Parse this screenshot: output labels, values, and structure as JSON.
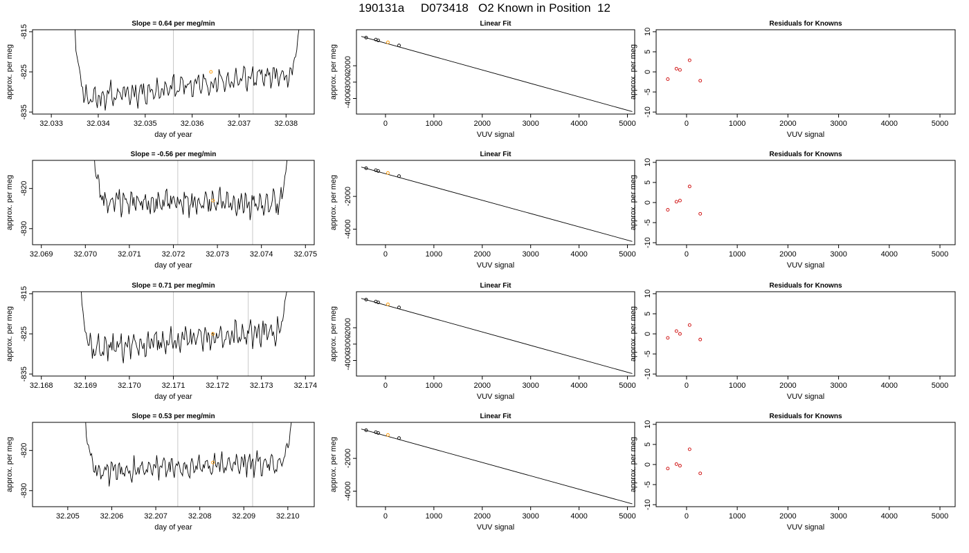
{
  "page": {
    "title": "190131a     D073418   O2 Known in Position  12"
  },
  "colors": {
    "trace": "#000000",
    "marker_orange": "#ff9900",
    "marker_red": "#cc0000",
    "vline": "#c8c8c8"
  },
  "chart_data": [
    {
      "type": "line",
      "row": 1,
      "panel": "trace",
      "title": "Slope =  0.64  per meg/min",
      "xlabel": "day of year",
      "ylabel": "approx. per meg",
      "xlim": [
        32.0326,
        32.0386
      ],
      "ylim": [
        -835.5,
        -814.5
      ],
      "xticks": [
        "32.033",
        "32.034",
        "32.035",
        "32.036",
        "32.037",
        "32.038"
      ],
      "xtick_values": [
        32.033,
        32.034,
        32.035,
        32.036,
        32.037,
        32.038
      ],
      "yticks": [
        "-815",
        "-825",
        "-835"
      ],
      "ytick_values": [
        -815,
        -825,
        -835
      ],
      "trace_start": 32.0335,
      "trace_end": 32.0383,
      "baseline_start": -832,
      "baseline_end": -825,
      "amplitude": 1.5,
      "seed": 11,
      "vlines": [
        32.0356,
        32.0373
      ],
      "marker": {
        "x": 32.0364,
        "y": -825
      }
    },
    {
      "type": "scatter",
      "row": 1,
      "panel": "fit",
      "title": "Linear Fit",
      "xlabel": "VUV signal",
      "ylabel": "approx. per meg",
      "xlim": [
        -600,
        5150
      ],
      "ylim": [
        -4950,
        200
      ],
      "xticks": [
        "0",
        "1000",
        "2000",
        "3000",
        "4000",
        "5000"
      ],
      "xtick_values": [
        0,
        1000,
        2000,
        3000,
        4000,
        5000
      ],
      "yticks": [
        "-2000",
        "-3000",
        "-4000"
      ],
      "ytick_values": [
        -2000,
        -3000,
        -4000
      ],
      "points": [
        {
          "x": -400,
          "y": -280
        },
        {
          "x": -200,
          "y": -400
        },
        {
          "x": -150,
          "y": -450
        },
        {
          "x": 50,
          "y": -570
        },
        {
          "x": 280,
          "y": -760
        }
      ],
      "highlight_index": 3,
      "fit_line": {
        "x": [
          -500,
          5100
        ],
        "y": -4800
      }
    },
    {
      "type": "scatter",
      "row": 1,
      "panel": "resid",
      "title": "Residuals for Knowns",
      "xlabel": "VUV signal",
      "ylabel": "approx. per meg",
      "xlim": [
        -600,
        5300
      ],
      "ylim": [
        -10.5,
        10.5
      ],
      "xticks": [
        "0",
        "1000",
        "2000",
        "3000",
        "4000",
        "5000"
      ],
      "xtick_values": [
        0,
        1000,
        2000,
        3000,
        4000,
        5000
      ],
      "yticks": [
        "10",
        "5",
        "0",
        "-5",
        "-10"
      ],
      "ytick_values": [
        10,
        5,
        0,
        -5,
        -10
      ],
      "points": [
        {
          "x": -370,
          "y": -1.8
        },
        {
          "x": -200,
          "y": 0.8
        },
        {
          "x": -130,
          "y": 0.5
        },
        {
          "x": 60,
          "y": 2.9
        },
        {
          "x": 270,
          "y": -2.2
        }
      ]
    },
    {
      "type": "line",
      "row": 2,
      "panel": "trace",
      "title": "Slope =  -0.56  per meg/min",
      "xlabel": "day of year",
      "ylabel": "approx. per meg",
      "xlim": [
        32.0688,
        32.0752
      ],
      "ylim": [
        -834,
        -813
      ],
      "xticks": [
        "32.069",
        "32.070",
        "32.071",
        "32.072",
        "32.073",
        "32.074",
        "32.075"
      ],
      "xtick_values": [
        32.069,
        32.07,
        32.071,
        32.072,
        32.073,
        32.074,
        32.075
      ],
      "yticks": [
        "-820",
        "-830"
      ],
      "ytick_values": [
        -820,
        -830
      ],
      "trace_start": 32.0702,
      "trace_end": 32.0746,
      "baseline_start": -823,
      "baseline_end": -824,
      "amplitude": 1.6,
      "seed": 23,
      "vlines": [
        32.0721,
        32.0738
      ],
      "marker": {
        "x": 32.0729,
        "y": -823
      }
    },
    {
      "type": "scatter",
      "row": 2,
      "panel": "fit",
      "title": "Linear Fit",
      "xlabel": "VUV signal",
      "ylabel": "approx. per meg",
      "xlim": [
        -600,
        5150
      ],
      "ylim": [
        -4950,
        200
      ],
      "xticks": [
        "0",
        "1000",
        "2000",
        "3000",
        "4000",
        "5000"
      ],
      "xtick_values": [
        0,
        1000,
        2000,
        3000,
        4000,
        5000
      ],
      "yticks": [
        "-2000",
        "-4000"
      ],
      "ytick_values": [
        -2000,
        -4000
      ],
      "points": [
        {
          "x": -400,
          "y": -280
        },
        {
          "x": -200,
          "y": -400
        },
        {
          "x": -150,
          "y": -450
        },
        {
          "x": 50,
          "y": -570
        },
        {
          "x": 280,
          "y": -760
        }
      ],
      "highlight_index": 3,
      "fit_line": {
        "x": [
          -500,
          5100
        ],
        "y": -4750
      }
    },
    {
      "type": "scatter",
      "row": 2,
      "panel": "resid",
      "title": "Residuals for Knowns",
      "xlabel": "VUV signal",
      "ylabel": "approx. per meg",
      "xlim": [
        -600,
        5300
      ],
      "ylim": [
        -10.5,
        10.5
      ],
      "xticks": [
        "0",
        "1000",
        "2000",
        "3000",
        "4000",
        "5000"
      ],
      "xtick_values": [
        0,
        1000,
        2000,
        3000,
        4000,
        5000
      ],
      "yticks": [
        "10",
        "5",
        "0",
        "-5",
        "-10"
      ],
      "ytick_values": [
        10,
        5,
        0,
        -5,
        -10
      ],
      "points": [
        {
          "x": -370,
          "y": -1.8
        },
        {
          "x": -200,
          "y": 0.2
        },
        {
          "x": -130,
          "y": 0.5
        },
        {
          "x": 60,
          "y": 4.0
        },
        {
          "x": 270,
          "y": -2.8
        }
      ]
    },
    {
      "type": "line",
      "row": 3,
      "panel": "trace",
      "title": "Slope =  0.71  per meg/min",
      "xlabel": "day of year",
      "ylabel": "approx. per meg",
      "xlim": [
        32.1678,
        32.1742
      ],
      "ylim": [
        -835.5,
        -814.5
      ],
      "xticks": [
        "32.168",
        "32.169",
        "32.170",
        "32.171",
        "32.172",
        "32.173",
        "32.174"
      ],
      "xtick_values": [
        32.168,
        32.169,
        32.17,
        32.171,
        32.172,
        32.173,
        32.174
      ],
      "yticks": [
        "-815",
        "-825",
        "-835"
      ],
      "ytick_values": [
        -815,
        -825,
        -835
      ],
      "trace_start": 32.1689,
      "trace_end": 32.1736,
      "baseline_start": -829,
      "baseline_end": -824,
      "amplitude": 1.6,
      "seed": 37,
      "vlines": [
        32.171,
        32.1727
      ],
      "marker": {
        "x": 32.1719,
        "y": -825
      }
    },
    {
      "type": "scatter",
      "row": 3,
      "panel": "fit",
      "title": "Linear Fit",
      "xlabel": "VUV signal",
      "ylabel": "approx. per meg",
      "xlim": [
        -600,
        5150
      ],
      "ylim": [
        -4950,
        200
      ],
      "xticks": [
        "0",
        "1000",
        "2000",
        "3000",
        "4000",
        "5000"
      ],
      "xtick_values": [
        0,
        1000,
        2000,
        3000,
        4000,
        5000
      ],
      "yticks": [
        "-2000",
        "-3000",
        "-4000"
      ],
      "ytick_values": [
        -2000,
        -3000,
        -4000
      ],
      "points": [
        {
          "x": -400,
          "y": -280
        },
        {
          "x": -200,
          "y": -400
        },
        {
          "x": -150,
          "y": -450
        },
        {
          "x": 50,
          "y": -570
        },
        {
          "x": 280,
          "y": -760
        }
      ],
      "highlight_index": 3,
      "fit_line": {
        "x": [
          -500,
          5100
        ],
        "y": -4800
      }
    },
    {
      "type": "scatter",
      "row": 3,
      "panel": "resid",
      "title": "Residuals for Knowns",
      "xlabel": "VUV signal",
      "ylabel": "approx. per meg",
      "xlim": [
        -600,
        5300
      ],
      "ylim": [
        -10.5,
        10.5
      ],
      "xticks": [
        "0",
        "1000",
        "2000",
        "3000",
        "4000",
        "5000"
      ],
      "xtick_values": [
        0,
        1000,
        2000,
        3000,
        4000,
        5000
      ],
      "yticks": [
        "10",
        "5",
        "0",
        "-5",
        "-10"
      ],
      "ytick_values": [
        10,
        5,
        0,
        -5,
        -10
      ],
      "points": [
        {
          "x": -370,
          "y": -1.0
        },
        {
          "x": -200,
          "y": 0.7
        },
        {
          "x": -130,
          "y": 0.0
        },
        {
          "x": 60,
          "y": 2.2
        },
        {
          "x": 270,
          "y": -1.4
        }
      ]
    },
    {
      "type": "line",
      "row": 4,
      "panel": "trace",
      "title": "Slope =  0.53  per meg/min",
      "xlabel": "day of year",
      "ylabel": "approx. per meg",
      "xlim": [
        32.2042,
        32.2106
      ],
      "ylim": [
        -834,
        -813
      ],
      "xticks": [
        "32.205",
        "32.206",
        "32.207",
        "32.208",
        "32.209",
        "32.210"
      ],
      "xtick_values": [
        32.205,
        32.206,
        32.207,
        32.208,
        32.209,
        32.21
      ],
      "yticks": [
        "-820",
        "-830"
      ],
      "ytick_values": [
        -820,
        -830
      ],
      "trace_start": 32.2054,
      "trace_end": 32.2101,
      "baseline_start": -825,
      "baseline_end": -823,
      "amplitude": 1.5,
      "seed": 53,
      "vlines": [
        32.2075,
        32.2092
      ],
      "marker": {
        "x": 32.2083,
        "y": -823
      }
    },
    {
      "type": "scatter",
      "row": 4,
      "panel": "fit",
      "title": "Linear Fit",
      "xlabel": "VUV signal",
      "ylabel": "approx. per meg",
      "xlim": [
        -600,
        5150
      ],
      "ylim": [
        -4950,
        200
      ],
      "xticks": [
        "0",
        "1000",
        "2000",
        "3000",
        "4000",
        "5000"
      ],
      "xtick_values": [
        0,
        1000,
        2000,
        3000,
        4000,
        5000
      ],
      "yticks": [
        "-2000",
        "-4000"
      ],
      "ytick_values": [
        -2000,
        -4000
      ],
      "points": [
        {
          "x": -400,
          "y": -280
        },
        {
          "x": -200,
          "y": -400
        },
        {
          "x": -150,
          "y": -450
        },
        {
          "x": 50,
          "y": -570
        },
        {
          "x": 280,
          "y": -760
        }
      ],
      "highlight_index": 3,
      "fit_line": {
        "x": [
          -500,
          5100
        ],
        "y": -4780
      }
    },
    {
      "type": "scatter",
      "row": 4,
      "panel": "resid",
      "title": "Residuals for Knowns",
      "xlabel": "VUV signal",
      "ylabel": "approx. per meg",
      "xlim": [
        -600,
        5300
      ],
      "ylim": [
        -10.5,
        10.5
      ],
      "xticks": [
        "0",
        "1000",
        "2000",
        "3000",
        "4000",
        "5000"
      ],
      "xtick_values": [
        0,
        1000,
        2000,
        3000,
        4000,
        5000
      ],
      "yticks": [
        "10",
        "5",
        "0",
        "-5",
        "-10"
      ],
      "ytick_values": [
        10,
        5,
        0,
        -5,
        -10
      ],
      "points": [
        {
          "x": -370,
          "y": -1.0
        },
        {
          "x": -200,
          "y": 0.1
        },
        {
          "x": -130,
          "y": -0.3
        },
        {
          "x": 60,
          "y": 3.8
        },
        {
          "x": 270,
          "y": -2.2
        }
      ]
    }
  ]
}
